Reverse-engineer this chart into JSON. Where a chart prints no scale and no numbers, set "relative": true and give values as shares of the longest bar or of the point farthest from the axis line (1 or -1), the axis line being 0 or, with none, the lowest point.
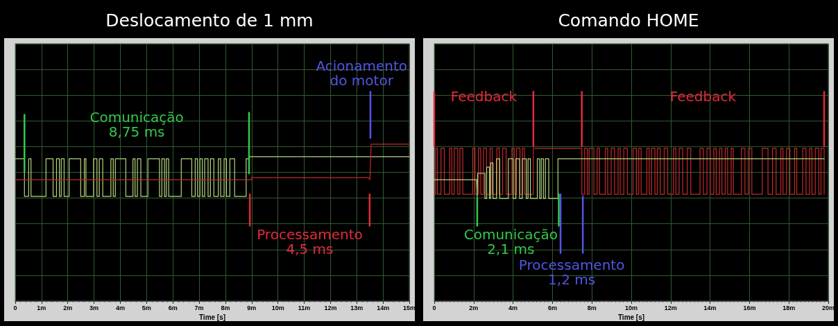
{
  "chart_data": [
    {
      "type": "line",
      "title": "Deslocamento de 1 mm",
      "xlabel": "Time [s]",
      "relative": true,
      "grid": true,
      "xlim": [
        0,
        15
      ],
      "xticks": [
        0,
        {
          "value": 1,
          "label": "1m"
        },
        {
          "value": 2,
          "label": "2m"
        },
        {
          "value": 3,
          "label": "3m"
        },
        {
          "value": 4,
          "label": "4m"
        },
        {
          "value": 5,
          "label": "5m"
        },
        {
          "value": 6,
          "label": "6m"
        },
        {
          "value": 7,
          "label": "7m"
        },
        {
          "value": 8,
          "label": "8m"
        },
        {
          "value": 9,
          "label": "9m"
        },
        {
          "value": 10,
          "label": "10m"
        },
        {
          "value": 11,
          "label": "11m"
        },
        {
          "value": 12,
          "label": "12m"
        },
        {
          "value": 13,
          "label": "13m"
        },
        {
          "value": 14,
          "label": "14m"
        },
        {
          "value": 15,
          "label": "15m"
        }
      ],
      "series": [
        {
          "color": "#b5d67e",
          "x": [
            0,
            0.35,
            0.35,
            0.51,
            0.51,
            0.6,
            0.6,
            1.17,
            1.17,
            1.44,
            1.44,
            1.57,
            1.57,
            1.68,
            1.68,
            1.75,
            1.75,
            1.86,
            1.86,
            2.05,
            2.05,
            2.49,
            2.49,
            2.63,
            2.63,
            2.69,
            2.69,
            2.98,
            2.98,
            3.11,
            3.11,
            3.2,
            3.2,
            3.33,
            3.33,
            3.64,
            3.64,
            3.73,
            3.73,
            3.81,
            3.81,
            4.21,
            4.21,
            4.48,
            4.48,
            4.56,
            4.56,
            4.65,
            4.65,
            4.78,
            4.78,
            5.05,
            5.05,
            5.49,
            5.49,
            5.58,
            5.58,
            5.68,
            5.68,
            5.75,
            5.75,
            5.84,
            5.84,
            6.32,
            6.32,
            6.72,
            6.72,
            6.85,
            6.85,
            6.94,
            6.94,
            7.03,
            7.03,
            7.12,
            7.12,
            7.21,
            7.21,
            7.34,
            7.34,
            7.43,
            7.43,
            7.56,
            7.56,
            7.73,
            7.73,
            7.82,
            7.82,
            7.95,
            7.95,
            8.04,
            8.04,
            8.17,
            8.17,
            8.35,
            8.35,
            8.79,
            8.79,
            8.9,
            8.9,
            15
          ],
          "values": [
            0.68,
            0.68,
            0.5,
            0.5,
            0.68,
            0.68,
            0.5,
            0.5,
            0.68,
            0.68,
            0.5,
            0.5,
            0.68,
            0.68,
            0.5,
            0.5,
            0.68,
            0.68,
            0.5,
            0.5,
            0.68,
            0.68,
            0.5,
            0.5,
            0.68,
            0.68,
            0.5,
            0.5,
            0.68,
            0.68,
            0.5,
            0.5,
            0.68,
            0.68,
            0.5,
            0.5,
            0.68,
            0.68,
            0.5,
            0.5,
            0.68,
            0.68,
            0.5,
            0.5,
            0.68,
            0.68,
            0.5,
            0.5,
            0.68,
            0.68,
            0.5,
            0.5,
            0.68,
            0.68,
            0.5,
            0.5,
            0.68,
            0.68,
            0.5,
            0.5,
            0.68,
            0.68,
            0.5,
            0.5,
            0.68,
            0.68,
            0.5,
            0.5,
            0.68,
            0.68,
            0.5,
            0.5,
            0.68,
            0.68,
            0.5,
            0.5,
            0.68,
            0.68,
            0.5,
            0.5,
            0.68,
            0.68,
            0.5,
            0.5,
            0.68,
            0.68,
            0.5,
            0.5,
            0.68,
            0.68,
            0.5,
            0.5,
            0.68,
            0.68,
            0.5,
            0.5,
            0.68,
            0.68,
            0.69,
            0.69
          ]
        },
        {
          "color": "#c42a2a",
          "x": [
            0,
            9,
            9,
            13.45,
            13.5,
            13.55,
            15
          ],
          "values": [
            0.58,
            0.58,
            0.59,
            0.59,
            0.58,
            0.75,
            0.75
          ]
        },
        {
          "name": "Comunicação\n8,75 ms",
          "color": "#34c94c",
          "x": [
            0.35,
            0.35,
            null,
            8.9,
            8.9
          ],
          "values": [
            0.62,
            0.89,
            null,
            0.61,
            0.9
          ]
        },
        {
          "name": "Processamento\n4,5 ms",
          "color": "#e32b3a",
          "x": [
            8.93,
            8.93,
            null,
            13.49,
            13.49
          ],
          "values": [
            0.36,
            0.51,
            null,
            0.36,
            0.51
          ]
        },
        {
          "name": "Acionamento\ndo motor",
          "color": "#5356e6",
          "x": [
            13.52,
            13.52
          ],
          "values": [
            0.78,
            1
          ]
        }
      ]
    },
    {
      "type": "line",
      "title": "Comando HOME",
      "xlabel": "Time [s]",
      "relative": true,
      "grid": true,
      "xlim": [
        0,
        20
      ],
      "xticks": [
        0,
        {
          "value": 2,
          "label": "2m"
        },
        {
          "value": 4,
          "label": "4m"
        },
        {
          "value": 6,
          "label": "6m"
        },
        {
          "value": 8,
          "label": "8m"
        },
        {
          "value": 10,
          "label": "10m"
        },
        {
          "value": 12,
          "label": "12m"
        },
        {
          "value": 14,
          "label": "14m"
        },
        {
          "value": 16,
          "label": "16m"
        },
        {
          "value": 18,
          "label": "18m"
        },
        {
          "value": 20,
          "label": "20m"
        }
      ],
      "series": [
        {
          "color": "#c42a2a",
          "x": [
            0,
            0.07,
            0.07,
            0.16,
            0.16,
            0.34,
            0.34,
            0.51,
            0.51,
            0.78,
            0.78,
            0.89,
            0.89,
            1.01,
            1.01,
            1.19,
            1.19,
            1.3,
            1.3,
            1.45,
            1.45,
            1.95,
            1.95,
            2.07,
            2.07,
            2.24,
            2.24,
            2.36,
            2.36,
            2.5,
            2.5,
            2.65,
            2.65,
            2.83,
            2.83,
            2.94,
            2.94,
            3.18,
            3.18,
            3.3,
            3.3,
            3.47,
            3.47,
            3.65,
            3.65,
            3.94,
            3.94,
            4.06,
            4.06,
            4.17,
            4.17,
            4.35,
            4.35,
            4.47,
            4.47,
            4.58,
            4.58,
            5.03,
            5.03,
            7.49,
            7.49,
            7.63,
            7.63,
            7.77,
            7.77,
            7.86,
            7.86,
            8.1,
            8.1,
            8.27,
            8.27,
            8.39,
            8.39,
            8.68,
            8.68,
            8.8,
            8.8,
            8.98,
            8.98,
            9.15,
            9.15,
            9.33,
            9.33,
            9.44,
            9.44,
            9.62,
            9.62,
            9.8,
            9.8,
            10.09,
            10.09,
            10.26,
            10.26,
            10.38,
            10.38,
            10.5,
            10.5,
            10.79,
            10.79,
            10.91,
            10.91,
            11.03,
            11.03,
            11.2,
            11.2,
            11.32,
            11.32,
            11.47,
            11.47,
            11.67,
            11.67,
            11.85,
            11.85,
            12.14,
            12.14,
            12.26,
            12.26,
            12.43,
            12.43,
            12.61,
            12.61,
            12.84,
            12.84,
            13.02,
            13.02,
            13.49,
            13.49,
            13.66,
            13.66,
            13.84,
            13.84,
            14.01,
            14.01,
            14.19,
            14.19,
            14.31,
            14.31,
            14.48,
            14.48,
            14.6,
            14.6,
            14.77,
            14.77,
            14.89,
            14.89,
            15.07,
            15.07,
            15.18,
            15.18,
            15.59,
            15.59,
            15.77,
            15.77,
            15.94,
            15.94,
            16.12,
            16.12,
            16.65,
            16.65,
            16.94,
            16.94,
            17.17,
            17.17,
            17.35,
            17.35,
            17.59,
            17.59,
            17.7,
            17.7,
            17.88,
            17.88,
            18.05,
            18.05,
            18.29,
            18.29,
            18.4,
            18.4,
            18.7,
            18.7,
            18.87,
            18.87,
            19.05,
            19.05,
            19.17,
            19.17,
            19.34,
            19.34,
            19.52,
            19.52,
            19.63,
            19.63,
            19.79,
            19.79
          ],
          "values": [
            0.51,
            0.51,
            0.73,
            0.73,
            0.51,
            0.51,
            0.73,
            0.73,
            0.51,
            0.51,
            0.73,
            0.73,
            0.51,
            0.51,
            0.73,
            0.73,
            0.51,
            0.51,
            0.73,
            0.73,
            0.51,
            0.51,
            0.73,
            0.73,
            0.51,
            0.51,
            0.73,
            0.73,
            0.51,
            0.51,
            0.73,
            0.73,
            0.51,
            0.51,
            0.73,
            0.73,
            0.51,
            0.51,
            0.73,
            0.73,
            0.51,
            0.51,
            0.73,
            0.73,
            0.51,
            0.51,
            0.73,
            0.73,
            0.51,
            0.51,
            0.73,
            0.73,
            0.51,
            0.51,
            0.73,
            0.73,
            0.51,
            0.51,
            0.73,
            0.73,
            0.51,
            0.51,
            0.73,
            0.73,
            0.51,
            0.51,
            0.73,
            0.73,
            0.51,
            0.51,
            0.73,
            0.73,
            0.51,
            0.51,
            0.73,
            0.73,
            0.51,
            0.51,
            0.73,
            0.73,
            0.51,
            0.51,
            0.73,
            0.73,
            0.51,
            0.51,
            0.73,
            0.73,
            0.51,
            0.51,
            0.73,
            0.73,
            0.51,
            0.51,
            0.73,
            0.73,
            0.51,
            0.51,
            0.73,
            0.73,
            0.51,
            0.51,
            0.73,
            0.73,
            0.51,
            0.51,
            0.73,
            0.73,
            0.51,
            0.51,
            0.73,
            0.73,
            0.51,
            0.51,
            0.73,
            0.73,
            0.51,
            0.51,
            0.73,
            0.73,
            0.51,
            0.51,
            0.73,
            0.73,
            0.51,
            0.51,
            0.73,
            0.73,
            0.51,
            0.51,
            0.73,
            0.73,
            0.51,
            0.51,
            0.73,
            0.73,
            0.51,
            0.51,
            0.73,
            0.73,
            0.51,
            0.51,
            0.73,
            0.73,
            0.51,
            0.51,
            0.73,
            0.73,
            0.51,
            0.51,
            0.73,
            0.73,
            0.51,
            0.51,
            0.73,
            0.73,
            0.51,
            0.51,
            0.73,
            0.73,
            0.51,
            0.51,
            0.73,
            0.73,
            0.51,
            0.51,
            0.73,
            0.73,
            0.51,
            0.51,
            0.73,
            0.73,
            0.51,
            0.51,
            0.73,
            0.73,
            0.51,
            0.51,
            0.73,
            0.73,
            0.51,
            0.51,
            0.73,
            0.73,
            0.51,
            0.51,
            0.73,
            0.73,
            0.51,
            0.51,
            0.73,
            0.73,
            0.51
          ]
        },
        {
          "color": "#b5d67e",
          "x": [
            0,
            2.15,
            2.18,
            2.2,
            2.57,
            2.57,
            2.66,
            2.66,
            2.8,
            2.8,
            2.86,
            2.86,
            2.98,
            2.98,
            3.16,
            3.16,
            3.32,
            3.32,
            3.76,
            3.76,
            4,
            4,
            4.14,
            4.14,
            4.33,
            4.33,
            4.47,
            4.47,
            4.67,
            4.67,
            4.76,
            4.76,
            4.88,
            4.88,
            5.23,
            5.23,
            5.35,
            5.35,
            5.43,
            5.43,
            5.54,
            5.54,
            5.64,
            5.64,
            5.81,
            5.81,
            6.28,
            6.28,
            19.8
          ],
          "values": [
            0.58,
            0.58,
            0.49,
            0.61,
            0.61,
            0.49,
            0.49,
            0.64,
            0.64,
            0.49,
            0.49,
            0.66,
            0.66,
            0.49,
            0.49,
            0.68,
            0.68,
            0.49,
            0.49,
            0.68,
            0.68,
            0.49,
            0.49,
            0.68,
            0.68,
            0.49,
            0.49,
            0.68,
            0.68,
            0.49,
            0.49,
            0.68,
            0.68,
            0.49,
            0.49,
            0.68,
            0.68,
            0.49,
            0.49,
            0.68,
            0.68,
            0.49,
            0.49,
            0.68,
            0.68,
            0.49,
            0.49,
            0.68,
            0.68
          ]
        },
        {
          "name": "Feedback",
          "color": "#e32b3a",
          "x": [
            0,
            0,
            null,
            5.03,
            5.03,
            null,
            7.49,
            7.49,
            null,
            19.79,
            19.79
          ],
          "values": [
            0.74,
            1,
            null,
            0.74,
            1,
            null,
            0.74,
            1,
            null,
            0.74,
            1
          ]
        },
        {
          "name": "Comunicação\n2,1 ms",
          "color": "#34c94c",
          "x": [
            2.18,
            2.18,
            null,
            6.32,
            6.32
          ],
          "values": [
            0.36,
            0.49,
            null,
            0.36,
            0.51
          ]
        },
        {
          "name": "Processamento\n1,2 ms",
          "color": "#5356e6",
          "x": [
            6.41,
            6.41,
            null,
            7.54,
            7.54
          ],
          "values": [
            0.23,
            0.51,
            null,
            0.23,
            0.5
          ]
        }
      ]
    }
  ]
}
